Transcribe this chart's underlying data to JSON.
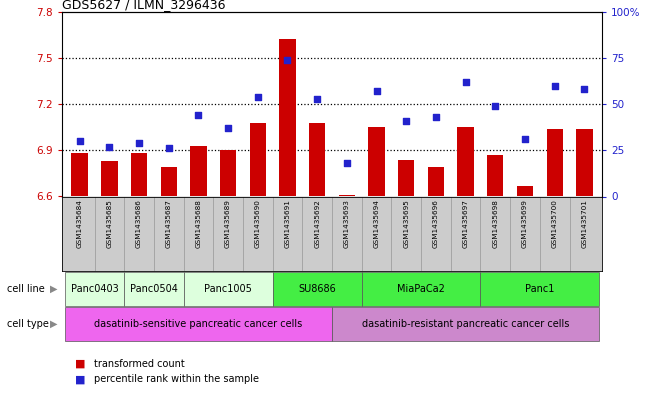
{
  "title": "GDS5627 / ILMN_3296436",
  "samples": [
    "GSM1435684",
    "GSM1435685",
    "GSM1435686",
    "GSM1435687",
    "GSM1435688",
    "GSM1435689",
    "GSM1435690",
    "GSM1435691",
    "GSM1435692",
    "GSM1435693",
    "GSM1435694",
    "GSM1435695",
    "GSM1435696",
    "GSM1435697",
    "GSM1435698",
    "GSM1435699",
    "GSM1435700",
    "GSM1435701"
  ],
  "transformed_count": [
    6.88,
    6.83,
    6.88,
    6.79,
    6.93,
    6.9,
    7.08,
    7.62,
    7.08,
    6.61,
    7.05,
    6.84,
    6.79,
    7.05,
    6.87,
    6.67,
    7.04,
    7.04
  ],
  "percentile_rank": [
    30,
    27,
    29,
    26,
    44,
    37,
    54,
    74,
    53,
    18,
    57,
    41,
    43,
    62,
    49,
    31,
    60,
    58
  ],
  "ylim_left": [
    6.6,
    7.8
  ],
  "ylim_right": [
    0,
    100
  ],
  "yticks_left": [
    6.6,
    6.9,
    7.2,
    7.5,
    7.8
  ],
  "yticks_right": [
    0,
    25,
    50,
    75,
    100
  ],
  "ytick_labels_right": [
    "0",
    "25",
    "50",
    "75",
    "100%"
  ],
  "hlines": [
    6.9,
    7.2,
    7.5
  ],
  "bar_color": "#cc0000",
  "dot_color": "#2222cc",
  "bar_width": 0.55,
  "cell_line_groups": [
    {
      "label": "Panc0403",
      "start": 0,
      "end": 1,
      "color": "#ddffdd"
    },
    {
      "label": "Panc0504",
      "start": 2,
      "end": 3,
      "color": "#ddffdd"
    },
    {
      "label": "Panc1005",
      "start": 4,
      "end": 6,
      "color": "#ddffdd"
    },
    {
      "label": "SU8686",
      "start": 7,
      "end": 9,
      "color": "#44ee44"
    },
    {
      "label": "MiaPaCa2",
      "start": 10,
      "end": 13,
      "color": "#44ee44"
    },
    {
      "label": "Panc1",
      "start": 14,
      "end": 17,
      "color": "#44ee44"
    }
  ],
  "cell_type_groups": [
    {
      "label": "dasatinib-sensitive pancreatic cancer cells",
      "start": 0,
      "end": 8,
      "color": "#ee66ee"
    },
    {
      "label": "dasatinib-resistant pancreatic cancer cells",
      "start": 9,
      "end": 17,
      "color": "#cc88cc"
    }
  ],
  "legend_bar_label": "transformed count",
  "legend_dot_label": "percentile rank within the sample",
  "tick_color_left": "#cc0000",
  "tick_color_right": "#2222cc",
  "sample_row_color": "#cccccc",
  "cell_line_label": "cell line",
  "cell_type_label": "cell type",
  "arrow_color": "#888888"
}
